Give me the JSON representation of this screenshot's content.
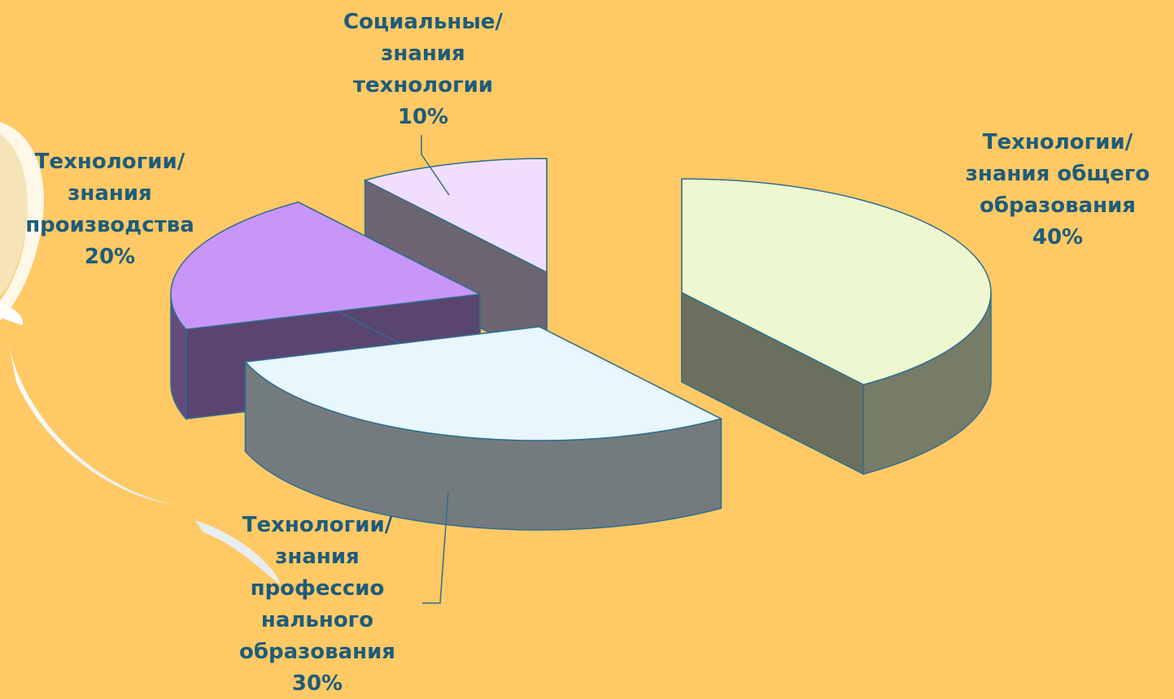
{
  "chart_data": {
    "type": "pie",
    "title": "",
    "style": "3d-exploded",
    "slices": [
      {
        "label": "Технологии/\nзнания общего\nобразования\n40%",
        "value": 40,
        "color": "#EEF8D0"
      },
      {
        "label": "Технологии/\nзнания\nпрофессио\nнального\nобразования\n30%",
        "value": 30,
        "color": "#E8F6FD"
      },
      {
        "label": "Технологии/\nзнания\nпроизводства\n20%",
        "value": 20,
        "color": "#C896F8"
      },
      {
        "label": "Социальные/\nзнания\nтехнологии\n10%",
        "value": 10,
        "color": "#F1DEFC"
      }
    ],
    "colors": {
      "background": "#FFC966",
      "label_text": "#1E5C7A",
      "outline": "#2F6E8E",
      "decor_swoosh": "#F0F8FF"
    }
  }
}
